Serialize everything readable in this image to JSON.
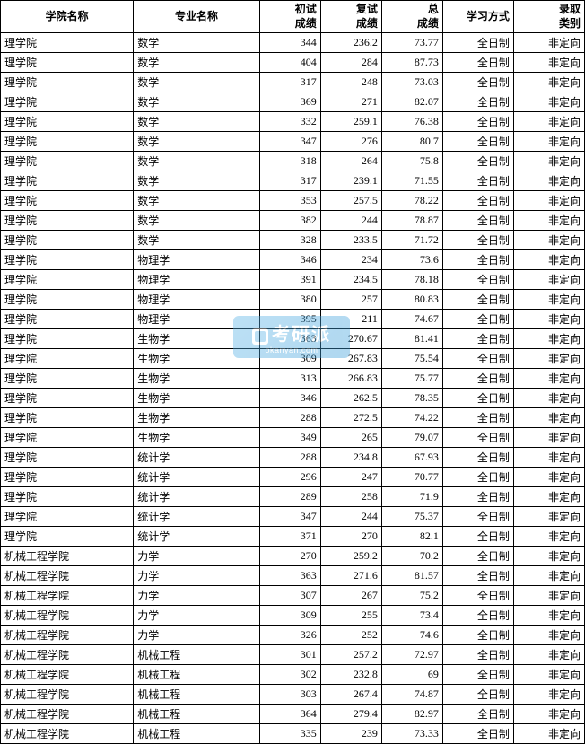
{
  "table": {
    "columns": [
      {
        "key": "college",
        "label": "学院名称",
        "class": "col-college"
      },
      {
        "key": "major",
        "label": "专业名称",
        "class": "col-major"
      },
      {
        "key": "score1",
        "label": "初试\n成绩",
        "class": "col-score1"
      },
      {
        "key": "score2",
        "label": "复试\n成绩",
        "class": "col-score2"
      },
      {
        "key": "total",
        "label": "总\n成绩",
        "class": "col-total"
      },
      {
        "key": "mode",
        "label": "学习方式",
        "class": "col-mode"
      },
      {
        "key": "type",
        "label": "录取\n类别",
        "class": "col-type"
      }
    ],
    "rows": [
      [
        "理学院",
        "数学",
        "344",
        "236.2",
        "73.77",
        "全日制",
        "非定向"
      ],
      [
        "理学院",
        "数学",
        "404",
        "284",
        "87.73",
        "全日制",
        "非定向"
      ],
      [
        "理学院",
        "数学",
        "317",
        "248",
        "73.03",
        "全日制",
        "非定向"
      ],
      [
        "理学院",
        "数学",
        "369",
        "271",
        "82.07",
        "全日制",
        "非定向"
      ],
      [
        "理学院",
        "数学",
        "332",
        "259.1",
        "76.38",
        "全日制",
        "非定向"
      ],
      [
        "理学院",
        "数学",
        "347",
        "276",
        "80.7",
        "全日制",
        "非定向"
      ],
      [
        "理学院",
        "数学",
        "318",
        "264",
        "75.8",
        "全日制",
        "非定向"
      ],
      [
        "理学院",
        "数学",
        "317",
        "239.1",
        "71.55",
        "全日制",
        "非定向"
      ],
      [
        "理学院",
        "数学",
        "353",
        "257.5",
        "78.22",
        "全日制",
        "非定向"
      ],
      [
        "理学院",
        "数学",
        "382",
        "244",
        "78.87",
        "全日制",
        "非定向"
      ],
      [
        "理学院",
        "数学",
        "328",
        "233.5",
        "71.72",
        "全日制",
        "非定向"
      ],
      [
        "理学院",
        "物理学",
        "346",
        "234",
        "73.6",
        "全日制",
        "非定向"
      ],
      [
        "理学院",
        "物理学",
        "391",
        "234.5",
        "78.18",
        "全日制",
        "非定向"
      ],
      [
        "理学院",
        "物理学",
        "380",
        "257",
        "80.83",
        "全日制",
        "非定向"
      ],
      [
        "理学院",
        "物理学",
        "395",
        "211",
        "74.67",
        "全日制",
        "非定向"
      ],
      [
        "理学院",
        "生物学",
        "363",
        "270.67",
        "81.41",
        "全日制",
        "非定向"
      ],
      [
        "理学院",
        "生物学",
        "309",
        "267.83",
        "75.54",
        "全日制",
        "非定向"
      ],
      [
        "理学院",
        "生物学",
        "313",
        "266.83",
        "75.77",
        "全日制",
        "非定向"
      ],
      [
        "理学院",
        "生物学",
        "346",
        "262.5",
        "78.35",
        "全日制",
        "非定向"
      ],
      [
        "理学院",
        "生物学",
        "288",
        "272.5",
        "74.22",
        "全日制",
        "非定向"
      ],
      [
        "理学院",
        "生物学",
        "349",
        "265",
        "79.07",
        "全日制",
        "非定向"
      ],
      [
        "理学院",
        "统计学",
        "288",
        "234.8",
        "67.93",
        "全日制",
        "非定向"
      ],
      [
        "理学院",
        "统计学",
        "296",
        "247",
        "70.77",
        "全日制",
        "非定向"
      ],
      [
        "理学院",
        "统计学",
        "289",
        "258",
        "71.9",
        "全日制",
        "非定向"
      ],
      [
        "理学院",
        "统计学",
        "347",
        "244",
        "75.37",
        "全日制",
        "非定向"
      ],
      [
        "理学院",
        "统计学",
        "371",
        "270",
        "82.1",
        "全日制",
        "非定向"
      ],
      [
        "机械工程学院",
        "力学",
        "270",
        "259.2",
        "70.2",
        "全日制",
        "非定向"
      ],
      [
        "机械工程学院",
        "力学",
        "363",
        "271.6",
        "81.57",
        "全日制",
        "非定向"
      ],
      [
        "机械工程学院",
        "力学",
        "307",
        "267",
        "75.2",
        "全日制",
        "非定向"
      ],
      [
        "机械工程学院",
        "力学",
        "309",
        "255",
        "73.4",
        "全日制",
        "非定向"
      ],
      [
        "机械工程学院",
        "力学",
        "326",
        "252",
        "74.6",
        "全日制",
        "非定向"
      ],
      [
        "机械工程学院",
        "机械工程",
        "301",
        "257.2",
        "72.97",
        "全日制",
        "非定向"
      ],
      [
        "机械工程学院",
        "机械工程",
        "302",
        "232.8",
        "69",
        "全日制",
        "非定向"
      ],
      [
        "机械工程学院",
        "机械工程",
        "303",
        "267.4",
        "74.87",
        "全日制",
        "非定向"
      ],
      [
        "机械工程学院",
        "机械工程",
        "364",
        "279.4",
        "82.97",
        "全日制",
        "非定向"
      ],
      [
        "机械工程学院",
        "机械工程",
        "335",
        "239",
        "73.33",
        "全日制",
        "非定向"
      ]
    ]
  },
  "watermark": {
    "main": "考研派",
    "sub": "okanyan.com"
  },
  "styling": {
    "border_color": "#000000",
    "background_color": "#ffffff",
    "font_size": 12,
    "header_font_weight": "bold",
    "watermark_bg": "#5ab4e8",
    "watermark_opacity": 0.4
  }
}
